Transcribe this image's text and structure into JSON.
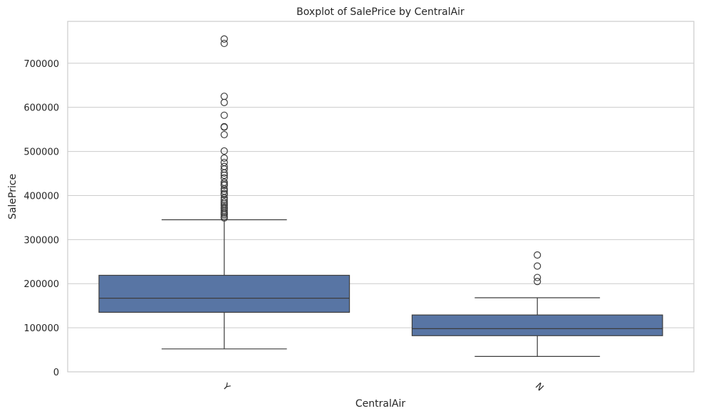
{
  "chart_data": {
    "type": "box",
    "title": "Boxplot of SalePrice by CentralAir",
    "xlabel": "CentralAir",
    "ylabel": "SalePrice",
    "ylim": [
      0,
      795000
    ],
    "yticks": [
      0,
      100000,
      200000,
      300000,
      400000,
      500000,
      600000,
      700000
    ],
    "grid": true,
    "box_color": "#5875a4",
    "categories": [
      "Y",
      "N"
    ],
    "boxes": [
      {
        "category": "Y",
        "whisker_low": 52000,
        "q1": 135000,
        "median": 167000,
        "q3": 219000,
        "whisker_high": 345000,
        "fliers": [
          755000,
          745000,
          625000,
          611000,
          582000,
          556000,
          555000,
          538000,
          501000,
          485000,
          475000,
          466000,
          460000,
          451000,
          446000,
          440000,
          430000,
          426000,
          423000,
          415000,
          410000,
          405000,
          402000,
          395000,
          390000,
          385000,
          381000,
          377000,
          373000,
          370000,
          366000,
          362000,
          359000,
          356000,
          352000,
          349000
        ]
      },
      {
        "category": "N",
        "whisker_low": 35000,
        "q1": 82000,
        "median": 98000,
        "q3": 129000,
        "whisker_high": 168000,
        "fliers": [
          265000,
          240000,
          214000,
          205000
        ]
      }
    ]
  }
}
